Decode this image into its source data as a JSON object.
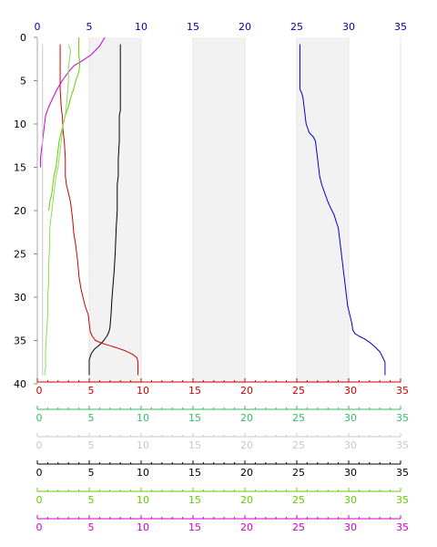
{
  "chart_data": {
    "type": "line",
    "title": "",
    "xlabel": "",
    "ylabel": "",
    "grid": "alternating vertical bands",
    "y_axis": {
      "range": [
        0,
        40
      ],
      "inverted": true,
      "ticks": [
        0,
        5,
        10,
        15,
        20,
        25,
        30,
        35,
        40
      ],
      "color": "#000000"
    },
    "top_axis": {
      "range": [
        0,
        35
      ],
      "ticks": [
        0,
        5,
        10,
        15,
        20,
        25,
        30,
        35
      ],
      "color": "#0000aa"
    },
    "bottom_axes": [
      {
        "id": "axis-red",
        "color": "#cc0000",
        "range": [
          0,
          35
        ],
        "ticks": [
          0,
          5,
          10,
          15,
          20,
          25,
          30,
          35
        ]
      },
      {
        "id": "axis-teal",
        "color": "#33bb66",
        "range": [
          0,
          35
        ],
        "ticks": [
          0,
          5,
          10,
          15,
          20,
          25,
          30,
          35
        ]
      },
      {
        "id": "axis-lightgrey",
        "color": "#c8c8c8",
        "range": [
          0,
          35
        ],
        "ticks": [
          0,
          5,
          10,
          15,
          20,
          25,
          30,
          35
        ]
      },
      {
        "id": "axis-black",
        "color": "#000000",
        "range": [
          0,
          35
        ],
        "ticks": [
          0,
          5,
          10,
          15,
          20,
          25,
          30,
          35
        ]
      },
      {
        "id": "axis-lime",
        "color": "#66cc00",
        "range": [
          0,
          35
        ],
        "ticks": [
          0,
          5,
          10,
          15,
          20,
          25,
          30,
          35
        ]
      },
      {
        "id": "axis-magenta",
        "color": "#cc00cc",
        "range": [
          0,
          35
        ],
        "ticks": [
          0,
          5,
          10,
          15,
          20,
          25,
          30,
          35
        ]
      }
    ],
    "series": [
      {
        "id": "blue",
        "color": "#0000cc",
        "points": [
          [
            25.3,
            0.8
          ],
          [
            25.3,
            3
          ],
          [
            25.3,
            5
          ],
          [
            25.3,
            6
          ],
          [
            25.5,
            6.5
          ],
          [
            25.6,
            7
          ],
          [
            25.7,
            8
          ],
          [
            25.8,
            9
          ],
          [
            25.9,
            10
          ],
          [
            26.2,
            11
          ],
          [
            26.6,
            11.5
          ],
          [
            26.8,
            12
          ],
          [
            26.9,
            13
          ],
          [
            27.0,
            14
          ],
          [
            27.1,
            15
          ],
          [
            27.2,
            16
          ],
          [
            27.4,
            17
          ],
          [
            27.7,
            18
          ],
          [
            28.0,
            19
          ],
          [
            28.3,
            19.8
          ],
          [
            28.6,
            20.5
          ],
          [
            28.8,
            21.3
          ],
          [
            29.0,
            22
          ],
          [
            29.1,
            23
          ],
          [
            29.2,
            24
          ],
          [
            29.3,
            25
          ],
          [
            29.4,
            26
          ],
          [
            29.5,
            27
          ],
          [
            29.6,
            28
          ],
          [
            29.7,
            29
          ],
          [
            29.8,
            30
          ],
          [
            29.9,
            31
          ],
          [
            30.1,
            32
          ],
          [
            30.3,
            33
          ],
          [
            30.4,
            33.8
          ],
          [
            30.6,
            34.2
          ],
          [
            31.0,
            34.5
          ],
          [
            31.5,
            34.8
          ],
          [
            32.0,
            35.2
          ],
          [
            32.5,
            35.7
          ],
          [
            33.0,
            36.3
          ],
          [
            33.3,
            37
          ],
          [
            33.5,
            37.5
          ],
          [
            33.5,
            39
          ]
        ]
      },
      {
        "id": "black",
        "color": "#000000",
        "points": [
          [
            8.0,
            0.8
          ],
          [
            8.0,
            3
          ],
          [
            8.0,
            5
          ],
          [
            8.0,
            7
          ],
          [
            8.0,
            8.5
          ],
          [
            7.9,
            9
          ],
          [
            7.9,
            12
          ],
          [
            7.8,
            14
          ],
          [
            7.8,
            16
          ],
          [
            7.7,
            17
          ],
          [
            7.7,
            20
          ],
          [
            7.6,
            22
          ],
          [
            7.5,
            25
          ],
          [
            7.4,
            27
          ],
          [
            7.3,
            28.5
          ],
          [
            7.2,
            30
          ],
          [
            7.1,
            32
          ],
          [
            7.0,
            33.5
          ],
          [
            6.9,
            34
          ],
          [
            6.7,
            34.5
          ],
          [
            6.4,
            35
          ],
          [
            6.0,
            35.5
          ],
          [
            5.5,
            36
          ],
          [
            5.2,
            36.5
          ],
          [
            5.0,
            37.2
          ],
          [
            5.0,
            38
          ],
          [
            5.0,
            39
          ]
        ]
      },
      {
        "id": "red",
        "color": "#cc0000",
        "points": [
          [
            2.2,
            0.8
          ],
          [
            2.2,
            3
          ],
          [
            2.2,
            5
          ],
          [
            2.2,
            6
          ],
          [
            2.3,
            8
          ],
          [
            2.4,
            9
          ],
          [
            2.5,
            11
          ],
          [
            2.6,
            12
          ],
          [
            2.7,
            14
          ],
          [
            2.7,
            16
          ],
          [
            2.8,
            17
          ],
          [
            3.0,
            18
          ],
          [
            3.2,
            19
          ],
          [
            3.3,
            20
          ],
          [
            3.4,
            21
          ],
          [
            3.5,
            22.5
          ],
          [
            3.7,
            24
          ],
          [
            3.8,
            25
          ],
          [
            3.9,
            26
          ],
          [
            4.0,
            27.5
          ],
          [
            4.2,
            29
          ],
          [
            4.4,
            30
          ],
          [
            4.6,
            31
          ],
          [
            4.9,
            32
          ],
          [
            5.0,
            33
          ],
          [
            5.1,
            34
          ],
          [
            5.3,
            34.5
          ],
          [
            5.6,
            35
          ],
          [
            6.2,
            35.3
          ],
          [
            7.0,
            35.6
          ],
          [
            7.8,
            35.9
          ],
          [
            8.5,
            36.2
          ],
          [
            9.2,
            36.6
          ],
          [
            9.6,
            37
          ],
          [
            9.7,
            37.5
          ],
          [
            9.7,
            38.5
          ],
          [
            9.7,
            39
          ]
        ]
      },
      {
        "id": "magenta",
        "color": "#cc00cc",
        "points": [
          [
            6.5,
            0
          ],
          [
            6.0,
            1
          ],
          [
            5.2,
            2
          ],
          [
            4.2,
            2.8
          ],
          [
            3.5,
            3.3
          ],
          [
            3.0,
            4
          ],
          [
            2.4,
            5
          ],
          [
            1.9,
            6
          ],
          [
            1.5,
            7
          ],
          [
            1.1,
            8
          ],
          [
            0.8,
            9
          ],
          [
            0.7,
            10
          ],
          [
            0.6,
            11
          ],
          [
            0.5,
            12
          ],
          [
            0.4,
            13
          ],
          [
            0.3,
            14
          ],
          [
            0.3,
            15
          ]
        ]
      },
      {
        "id": "lime",
        "color": "#66cc00",
        "points": [
          [
            4.0,
            0
          ],
          [
            4.0,
            1
          ],
          [
            4.0,
            2
          ],
          [
            4.1,
            3
          ],
          [
            4.0,
            4
          ],
          [
            3.7,
            5
          ],
          [
            3.5,
            6
          ],
          [
            3.2,
            7
          ],
          [
            3.0,
            8
          ],
          [
            2.7,
            9
          ],
          [
            2.5,
            10
          ],
          [
            2.3,
            11
          ],
          [
            2.1,
            12
          ],
          [
            2.0,
            13
          ],
          [
            1.9,
            14
          ],
          [
            1.8,
            15
          ],
          [
            1.6,
            16
          ],
          [
            1.5,
            17
          ],
          [
            1.4,
            18
          ],
          [
            1.2,
            19
          ],
          [
            1.1,
            20
          ]
        ]
      },
      {
        "id": "lightgreen",
        "color": "#88dd55",
        "points": [
          [
            3.0,
            0.8
          ],
          [
            3.2,
            1.5
          ],
          [
            3.1,
            2.5
          ],
          [
            3.0,
            3.5
          ],
          [
            3.0,
            5
          ],
          [
            2.9,
            6.5
          ],
          [
            2.8,
            8
          ],
          [
            2.7,
            9
          ],
          [
            2.5,
            10
          ],
          [
            2.4,
            11
          ],
          [
            2.3,
            12
          ],
          [
            2.2,
            13
          ],
          [
            2.1,
            14
          ],
          [
            2.0,
            15
          ],
          [
            1.8,
            16
          ],
          [
            1.7,
            17
          ],
          [
            1.6,
            18
          ],
          [
            1.5,
            19
          ],
          [
            1.4,
            20
          ],
          [
            1.3,
            21
          ],
          [
            1.2,
            22
          ],
          [
            1.2,
            24
          ],
          [
            1.1,
            26
          ],
          [
            1.1,
            28
          ],
          [
            1.0,
            30
          ],
          [
            1.0,
            32
          ],
          [
            0.9,
            34
          ],
          [
            0.8,
            36
          ],
          [
            0.8,
            38
          ],
          [
            0.7,
            39
          ]
        ]
      },
      {
        "id": "lightgrey",
        "color": "#c8c8c8",
        "points": [
          [
            0.5,
            0.8
          ],
          [
            0.5,
            2
          ],
          [
            0.5,
            5
          ],
          [
            0.5,
            10
          ],
          [
            0.5,
            15
          ],
          [
            0.5,
            20
          ],
          [
            0.5,
            25
          ],
          [
            0.5,
            30
          ],
          [
            0.5,
            35
          ],
          [
            0.5,
            39
          ]
        ]
      }
    ]
  }
}
